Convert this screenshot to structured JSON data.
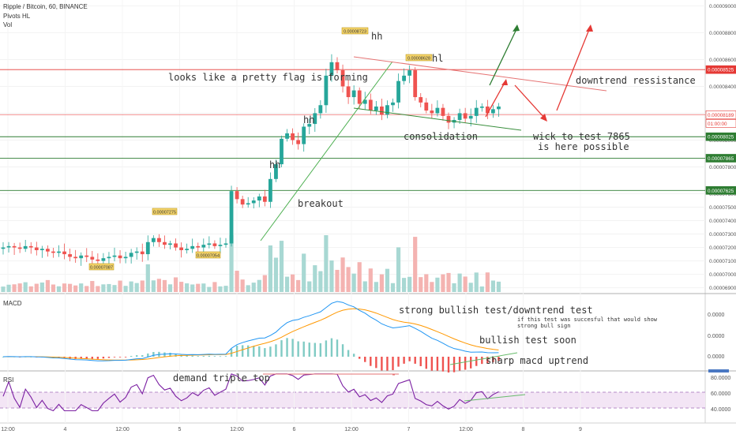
{
  "header": {
    "symbol_line": "Ripple / Bitcoin, 60, BINANCE",
    "indicator_1": "Pivots HL",
    "indicator_2": "Vol"
  },
  "price_axis": {
    "ticks": [
      "0.00009000",
      "0.00008800",
      "0.00008600",
      "0.00008400",
      "0.00008200",
      "0.00008000",
      "0.00007800",
      "0.00007600",
      "0.00007500",
      "0.00007400",
      "0.00007300",
      "0.00007200",
      "0.00007100",
      "0.00007000",
      "0.00006900"
    ],
    "levels": [
      {
        "label": "0.00008525",
        "color": "#e53935"
      },
      {
        "label": "0.00008189",
        "color": "#e53935"
      },
      {
        "label": "01:00:00",
        "color": "#e53935"
      },
      {
        "label": "0.00008025",
        "color": "#2e7d32"
      },
      {
        "label": "0.00007865",
        "color": "#2e7d32"
      },
      {
        "label": "0.00007625",
        "color": "#2e7d32"
      }
    ]
  },
  "time_axis": {
    "labels": [
      "12:00",
      "4",
      "12:00",
      "5",
      "12:00",
      "6",
      "12:00",
      "7",
      "12:00",
      "8",
      "9"
    ]
  },
  "pivot_labels": [
    "0.00008723",
    "0.00008628",
    "0.00007275",
    "0.00007054",
    "0.00007087"
  ],
  "annotations": {
    "flag": "looks like a pretty flag is forming",
    "hh_1": "hh",
    "hh_2": "hh",
    "hh_3": "hh",
    "hl": "hl",
    "breakout": "breakout",
    "consolidation": "consolidation",
    "wick_line1": "wick to test 7865",
    "wick_line2": "is here possible",
    "downtrend": "downtrend ressistance"
  },
  "macd": {
    "title": "MACD",
    "ticks": [
      "0.0000",
      "0.0000",
      "0.0000"
    ],
    "note_strong": "strong bullish test/downtrend test",
    "note_small_1": "if this test was succesful that would show",
    "note_small_2": "strong bull sign",
    "note_soon": "bullish test soon",
    "note_sharp": "sharp macd uptrend"
  },
  "rsi": {
    "title": "RSI",
    "ticks": [
      "80.0000",
      "60.0000",
      "40.0000"
    ],
    "note": "demand triple top"
  },
  "colors": {
    "up": "#26a69a",
    "down": "#ef5350",
    "macd_line": "#2196f3",
    "signal_line": "#ff9800",
    "rsi_line": "#7b1fa2",
    "rsi_band": "#f3e5f5",
    "annotation_green": "#2e7d32",
    "annotation_red": "#e53935"
  },
  "chart_data": {
    "type": "candlestick",
    "title": "Ripple / Bitcoin, 60, BINANCE",
    "ylim": [
      6.88e-05,
      9.02e-05
    ],
    "horizontal_levels": [
      8.525e-05,
      8.189e-05,
      8.025e-05,
      7.865e-05,
      7.625e-05
    ],
    "close_path": [
      7.2e-05,
      7.21e-05,
      7.2e-05,
      7.19e-05,
      7.21e-05,
      7.2e-05,
      7.18e-05,
      7.19e-05,
      7.17e-05,
      7.16e-05,
      7.17e-05,
      7.15e-05,
      7.13e-05,
      7.12e-05,
      7.14e-05,
      7.13e-05,
      7.11e-05,
      7.1e-05,
      7.12e-05,
      7.13e-05,
      7.14e-05,
      7.12e-05,
      7.13e-05,
      7.16e-05,
      7.17e-05,
      7.15e-05,
      7.24e-05,
      7.27e-05,
      7.24e-05,
      7.22e-05,
      7.23e-05,
      7.2e-05,
      7.18e-05,
      7.19e-05,
      7.21e-05,
      7.2e-05,
      7.22e-05,
      7.23e-05,
      7.21e-05,
      7.22e-05,
      7.23e-05,
      7.62e-05,
      7.56e-05,
      7.52e-05,
      7.53e-05,
      7.55e-05,
      7.58e-05,
      7.54e-05,
      7.71e-05,
      7.82e-05,
      8.01e-05,
      8.05e-05,
      8e-05,
      7.97e-05,
      8.1e-05,
      8.12e-05,
      8.2e-05,
      8.26e-05,
      8.48e-05,
      8.58e-05,
      8.52e-05,
      8.4e-05,
      8.32e-05,
      8.37e-05,
      8.27e-05,
      8.3e-05,
      8.22e-05,
      8.25e-05,
      8.19e-05,
      8.26e-05,
      8.28e-05,
      8.44e-05,
      8.48e-05,
      8.52e-05,
      8.32e-05,
      8.28e-05,
      8.22e-05,
      8.2e-05,
      8.24e-05,
      8.18e-05,
      8.13e-05,
      8.15e-05,
      8.2e-05,
      8.16e-05,
      8.18e-05,
      8.24e-05,
      8.25e-05,
      8.2e-05,
      8.23e-05,
      8.25e-05
    ]
  }
}
